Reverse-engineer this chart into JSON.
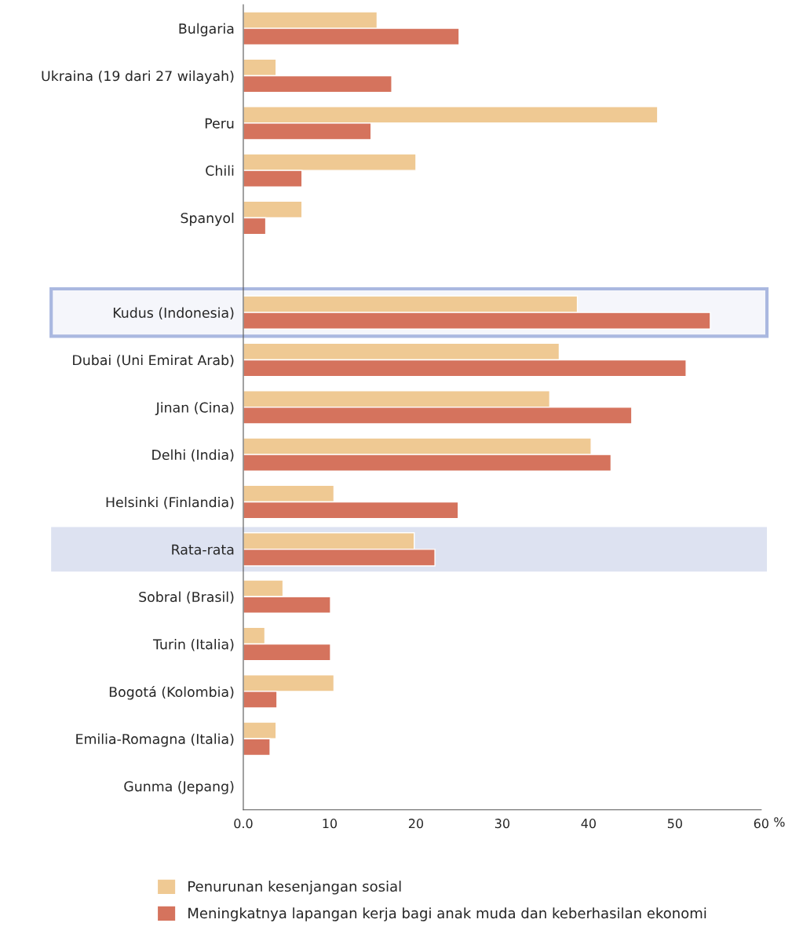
{
  "chart_data": {
    "type": "bar",
    "orientation": "horizontal",
    "categories": [
      "Bulgaria",
      "Ukraina (19 dari 27 wilayah)",
      "Peru",
      "Chili",
      "Spanyol",
      null,
      "Kudus (Indonesia)",
      "Dubai (Uni Emirat Arab)",
      "Jinan (Cina)",
      "Delhi (India)",
      "Helsinki (Finlandia)",
      "Rata-rata",
      "Sobral (Brasil)",
      "Turin (Italia)",
      "Bogotá (Kolombia)",
      "Emilia-Romagna (Italia)",
      "Gunma (Jepang)"
    ],
    "series": [
      {
        "name": "Penurunan kesenjangan sosial",
        "color": "#efc993",
        "values": [
          15.5,
          3.8,
          48.0,
          20.0,
          6.8,
          null,
          38.7,
          36.6,
          35.5,
          40.3,
          10.5,
          19.8,
          4.6,
          2.5,
          10.5,
          3.8,
          null
        ]
      },
      {
        "name": "Meningkatnya lapangan kerja bagi anak muda dan keberhasilan ekonomi",
        "color": "#d5735d",
        "values": [
          25.0,
          17.2,
          14.8,
          6.8,
          2.6,
          null,
          54.1,
          51.3,
          45.0,
          42.6,
          24.9,
          22.2,
          10.1,
          10.1,
          3.9,
          3.1,
          null
        ]
      }
    ],
    "xlabel": "%",
    "xlim": [
      0,
      60
    ],
    "xticks": [
      {
        "value": 0,
        "label": "0.0"
      },
      10,
      20,
      30,
      40,
      50,
      60
    ],
    "bands": [
      {
        "axis": "y",
        "from": "Kudus (Indonesia)",
        "to": "Kudus (Indonesia)",
        "color": "#aab8e0"
      },
      {
        "axis": "y",
        "from": "Rata-rata",
        "to": "Rata-rata",
        "color": "#dde2f1"
      }
    ],
    "grid": false,
    "legend": "bottom"
  }
}
